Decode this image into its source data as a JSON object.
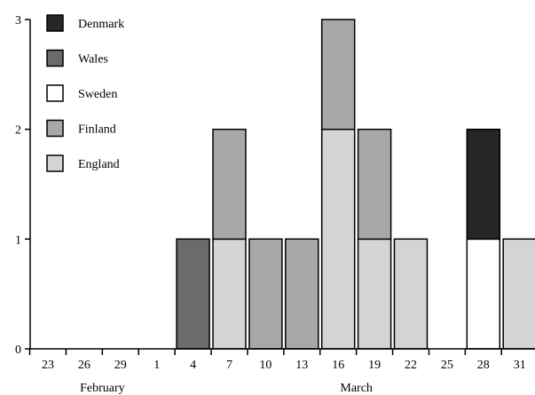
{
  "chart_data": {
    "type": "bar",
    "stacked": true,
    "title": "",
    "xlabel": "",
    "ylabel": "",
    "ylim": [
      0,
      3
    ],
    "yticks": [
      "0",
      "1",
      "2",
      "3"
    ],
    "categories": [
      "23",
      "26",
      "29",
      "1",
      "4",
      "7",
      "10",
      "13",
      "16",
      "19",
      "22",
      "25",
      "28",
      "31"
    ],
    "month_labels": [
      {
        "label": "February",
        "category_index": 1.5
      },
      {
        "label": "March",
        "category_index": 8.5
      }
    ],
    "legend_placement": "top-left",
    "grid": false,
    "series": [
      {
        "name": "England",
        "color": "#d4d4d4",
        "values": [
          0,
          0,
          0,
          0,
          0,
          1,
          0,
          0,
          2,
          1,
          1,
          0,
          0,
          1
        ]
      },
      {
        "name": "Finland",
        "color": "#a8a8a8",
        "values": [
          0,
          0,
          0,
          0,
          0,
          1,
          1,
          1,
          1,
          1,
          0,
          0,
          0,
          0
        ]
      },
      {
        "name": "Sweden",
        "color": "#ffffff",
        "values": [
          0,
          0,
          0,
          0,
          0,
          0,
          0,
          0,
          0,
          0,
          0,
          0,
          1,
          0
        ]
      },
      {
        "name": "Wales",
        "color": "#6b6b6b",
        "values": [
          0,
          0,
          0,
          0,
          1,
          0,
          0,
          0,
          0,
          0,
          0,
          0,
          0,
          0
        ]
      },
      {
        "name": "Denmark",
        "color": "#262626",
        "values": [
          0,
          0,
          0,
          0,
          0,
          0,
          0,
          0,
          0,
          0,
          0,
          0,
          1,
          0
        ]
      }
    ],
    "legend_order": [
      "Denmark",
      "Wales",
      "Sweden",
      "Finland",
      "England"
    ]
  }
}
